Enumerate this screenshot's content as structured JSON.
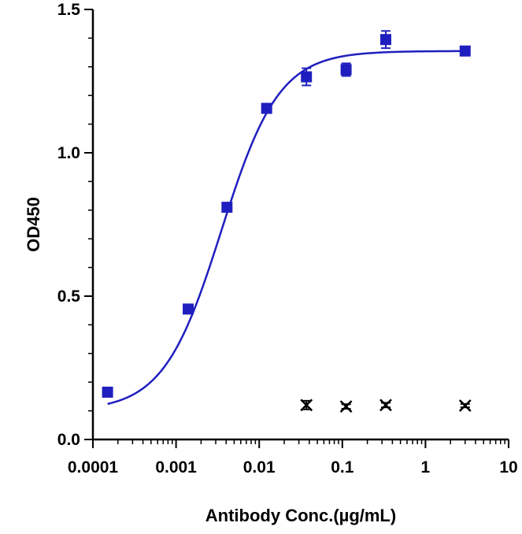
{
  "chart_data": {
    "type": "scatter",
    "title": "",
    "xlabel": "Antibody Conc.(µg/mL)",
    "ylabel": "OD450",
    "xscale": "log",
    "xlim": [
      0.0001,
      10
    ],
    "ylim": [
      0,
      1.5
    ],
    "xticks": [
      {
        "value": 0.0001,
        "label": "0.0001"
      },
      {
        "value": 0.001,
        "label": "0.001"
      },
      {
        "value": 0.01,
        "label": "0.01"
      },
      {
        "value": 0.1,
        "label": "0.1"
      },
      {
        "value": 1,
        "label": "1"
      },
      {
        "value": 10,
        "label": "10"
      }
    ],
    "yticks": [
      {
        "value": 0,
        "label": "0.0"
      },
      {
        "value": 0.5,
        "label": "0.5"
      },
      {
        "value": 1.0,
        "label": "1.0"
      },
      {
        "value": 1.5,
        "label": "1.5"
      }
    ],
    "grid": false,
    "legend": "none",
    "series": [
      {
        "marker": "square",
        "color": "#1f1fbf",
        "points": [
          {
            "x": 0.00015,
            "y": 0.165,
            "err": 0.008
          },
          {
            "x": 0.0014,
            "y": 0.455,
            "err": 0.01
          },
          {
            "x": 0.0041,
            "y": 0.81,
            "err": 0.012
          },
          {
            "x": 0.0123,
            "y": 1.155,
            "err": 0.012
          },
          {
            "x": 0.037,
            "y": 1.265,
            "err": 0.03
          },
          {
            "x": 0.111,
            "y": 1.29,
            "err": 0.022
          },
          {
            "x": 0.333,
            "y": 1.395,
            "err": 0.03
          },
          {
            "x": 3.0,
            "y": 1.355,
            "err": 0.008
          }
        ],
        "fit": {
          "model": "4PL",
          "bottom": 0.1,
          "top": 1.355,
          "ec50": 0.0035,
          "hill": 1.25
        }
      },
      {
        "marker": "cross",
        "color": "#000000",
        "points": [
          {
            "x": 0.037,
            "y": 0.12,
            "err": 0.015
          },
          {
            "x": 0.111,
            "y": 0.115,
            "err": 0.008
          },
          {
            "x": 0.333,
            "y": 0.12,
            "err": 0.008
          },
          {
            "x": 3.0,
            "y": 0.118,
            "err": 0.006
          }
        ]
      }
    ]
  }
}
